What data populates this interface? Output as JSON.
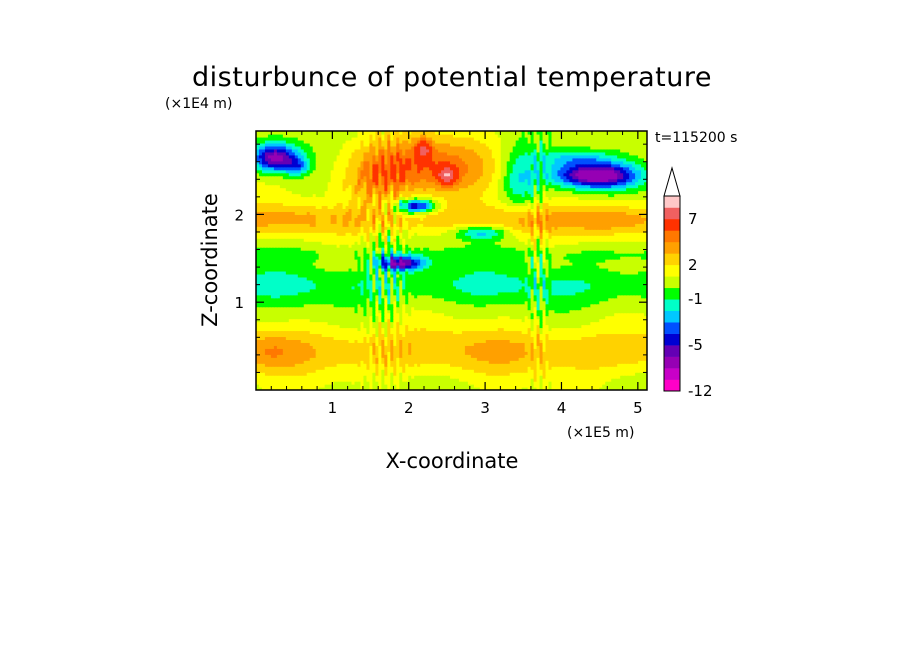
{
  "chart_data": {
    "type": "heatmap",
    "title": "disturbunce of potential temperature",
    "xlabel": "X-coordinate",
    "ylabel": "Z-coordinate",
    "x_unit_label": "(×1E5 m)",
    "y_unit_label": "(×1E4 m)",
    "time_label": "t=115200 s",
    "xlim": [
      0,
      5.12
    ],
    "ylim": [
      0,
      2.95
    ],
    "x_ticks": [
      "1",
      "2",
      "3",
      "4",
      "5"
    ],
    "x_tick_values": [
      1,
      2,
      3,
      4,
      5
    ],
    "y_ticks": [
      "1",
      "2"
    ],
    "y_tick_values": [
      1,
      2
    ],
    "colorbar": {
      "levels": [
        -12,
        -10,
        -8,
        -6,
        -5,
        -4,
        -3,
        -2,
        -1,
        0,
        1,
        2,
        3,
        4,
        5,
        7,
        9,
        11
      ],
      "labels": [
        "-12",
        "-5",
        "-1",
        "2",
        "7"
      ],
      "label_values": [
        -12,
        -5,
        -1,
        2,
        7
      ],
      "colors": [
        "#ff00c8",
        "#c800c8",
        "#9600b4",
        "#6400b4",
        "#0000d2",
        "#0050ff",
        "#00c8ff",
        "#00ffc8",
        "#00ff00",
        "#c8ff00",
        "#ffff00",
        "#ffd200",
        "#ffa000",
        "#ff7800",
        "#ff3200",
        "#f06060",
        "#ffc8c8"
      ],
      "extend": "max"
    },
    "grid": false
  }
}
